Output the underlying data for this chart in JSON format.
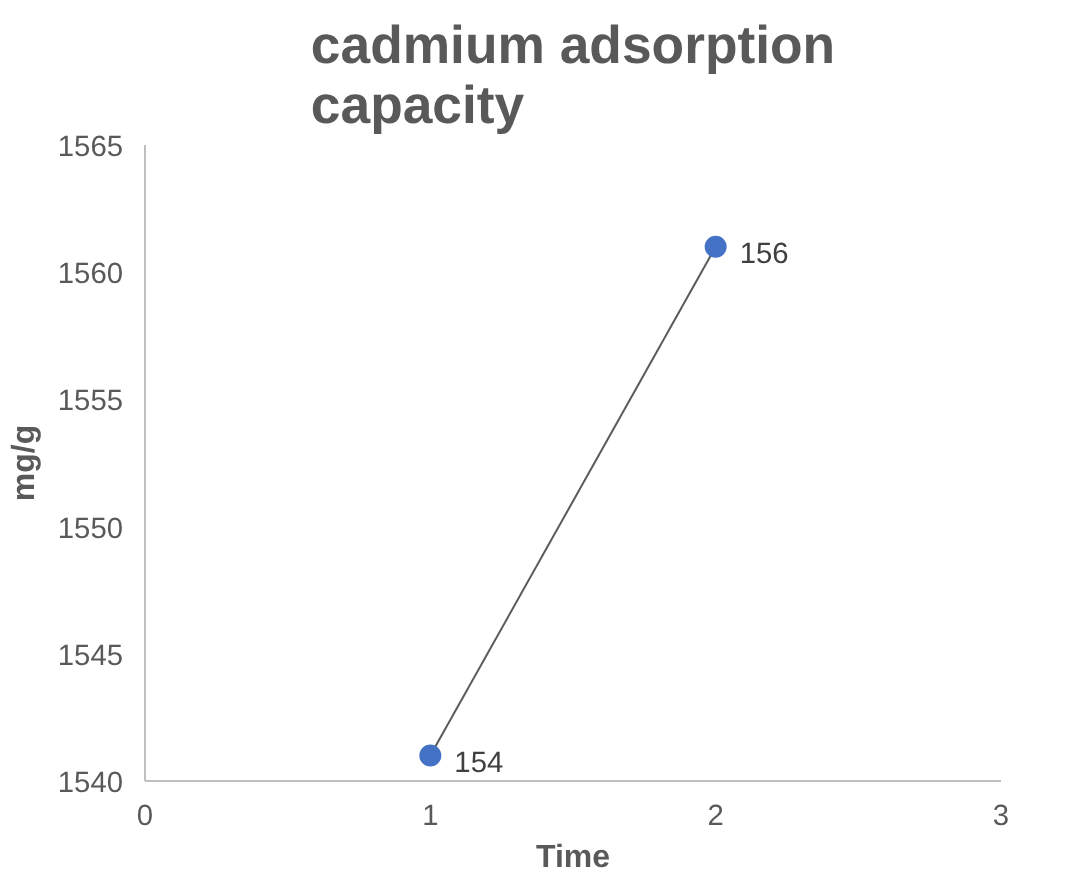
{
  "chart_data": {
    "type": "line",
    "title": "cadmium adsorption capacity",
    "xlabel": "Time",
    "ylabel": "mg/g",
    "x": [
      1,
      2
    ],
    "series": [
      {
        "color": "#4472c4",
        "values": [
          1541,
          1561
        ]
      }
    ],
    "annotations": [
      {
        "text": "154",
        "x": 1,
        "y": 1541
      },
      {
        "text": "156",
        "x": 2,
        "y": 1561
      }
    ],
    "xlim": [
      0,
      3
    ],
    "xticks": [
      0,
      1,
      2,
      3
    ],
    "ylim": [
      1540,
      1565
    ],
    "yticks": [
      1540,
      1545,
      1550,
      1555,
      1560,
      1565
    ],
    "grid": false,
    "marker": "circle",
    "line_style": "solid"
  }
}
